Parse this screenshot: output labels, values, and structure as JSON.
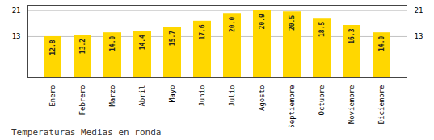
{
  "chart_data": {
    "type": "bar",
    "title": "Temperaturas Medias en ronda",
    "categories": [
      "Enero",
      "Febrero",
      "Marzo",
      "Abril",
      "Mayo",
      "Junio",
      "Julio",
      "Agosto",
      "Septiembre",
      "Octubre",
      "Noviembre",
      "Diciembre"
    ],
    "values": [
      12.8,
      13.2,
      14.0,
      14.4,
      15.7,
      17.6,
      20.0,
      20.9,
      20.5,
      18.5,
      16.3,
      14.0
    ],
    "value_labels": [
      "12.8",
      "13.2",
      "14.0",
      "14.4",
      "15.7",
      "17.6",
      "20.0",
      "20.9",
      "20.5",
      "18.5",
      "16.3",
      "14.0"
    ],
    "data_labels": true,
    "color": "#FFD700",
    "ylim": [
      0,
      22.572
    ],
    "yticks": [
      12.8,
      20.9
    ],
    "grid": true
  }
}
